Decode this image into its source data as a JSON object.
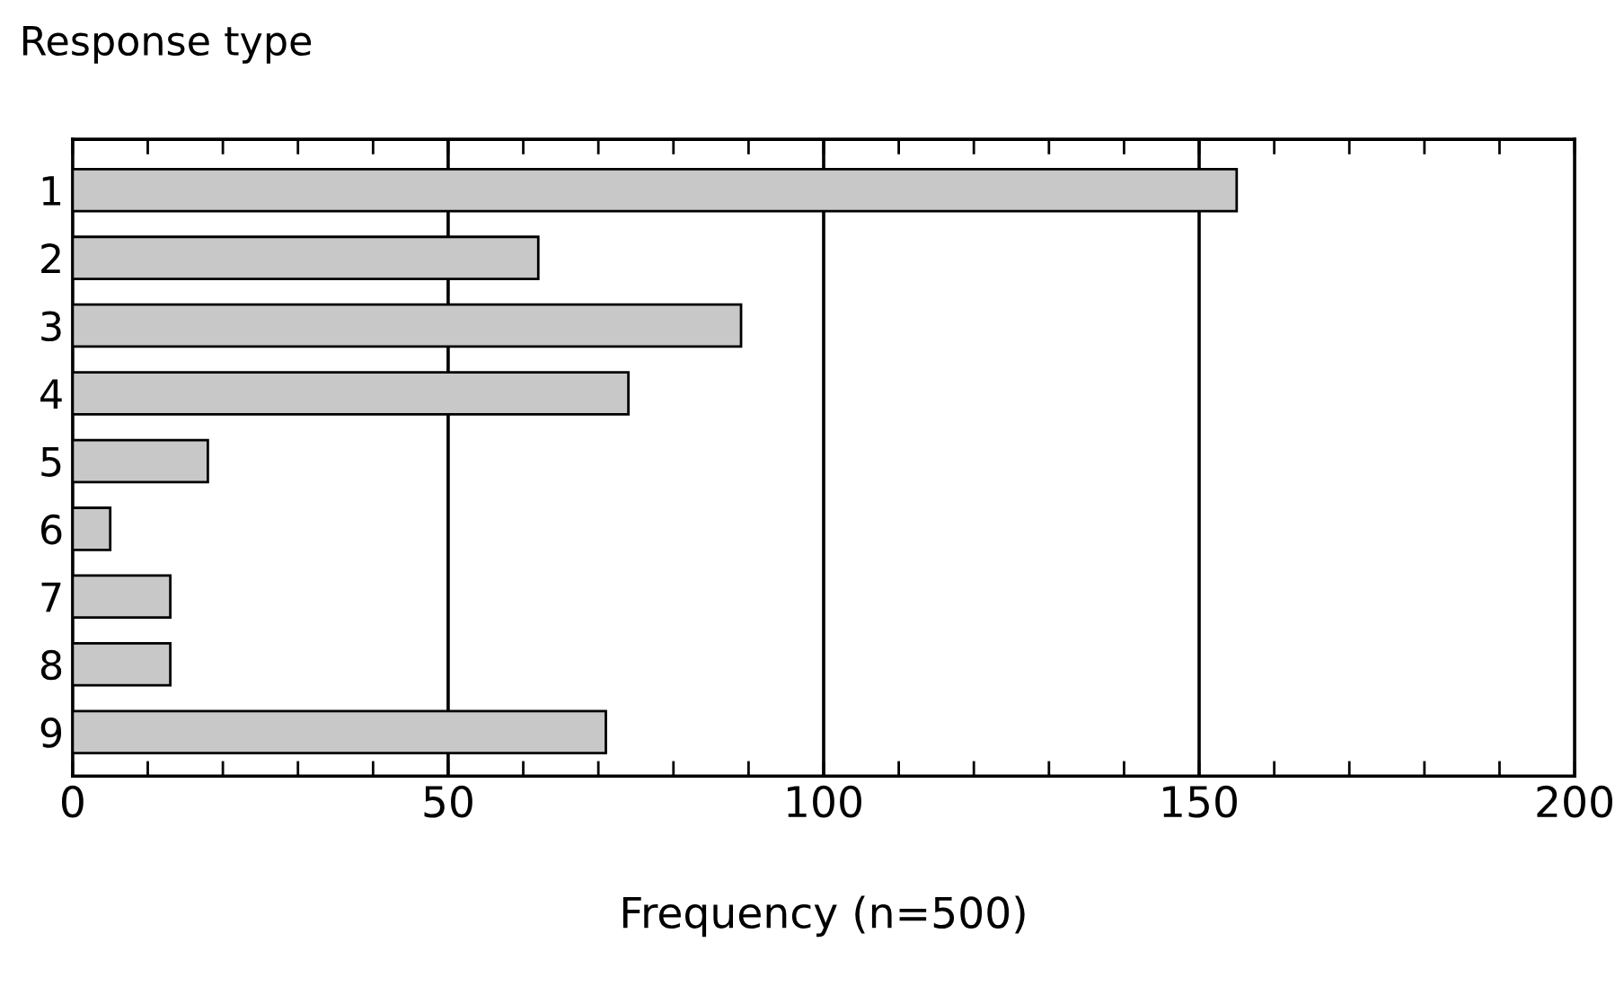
{
  "chart_data": {
    "type": "bar",
    "orientation": "horizontal",
    "ylabel": "Response type",
    "xlabel": "Frequency (n=500)",
    "categories": [
      "1",
      "2",
      "3",
      "4",
      "5",
      "6",
      "7",
      "8",
      "9"
    ],
    "values": [
      155,
      62,
      89,
      74,
      18,
      5,
      13,
      13,
      71
    ],
    "color": "#c8c8c8",
    "xlim": [
      0,
      200
    ],
    "xticks": [
      0,
      {
        "value": 10,
        "label": null
      },
      {
        "value": 20,
        "label": null
      },
      {
        "value": 30,
        "label": null
      },
      {
        "value": 40,
        "label": null
      },
      50,
      {
        "value": 60,
        "label": null
      },
      {
        "value": 70,
        "label": null
      },
      {
        "value": 80,
        "label": null
      },
      {
        "value": 90,
        "label": null
      },
      100,
      {
        "value": 110,
        "label": null
      },
      {
        "value": 120,
        "label": null
      },
      {
        "value": 130,
        "label": null
      },
      {
        "value": 140,
        "label": null
      },
      150,
      {
        "value": 160,
        "label": null
      },
      {
        "value": 170,
        "label": null
      },
      {
        "value": 180,
        "label": null
      },
      {
        "value": 190,
        "label": null
      },
      200
    ],
    "grid": "x",
    "legend": false
  }
}
